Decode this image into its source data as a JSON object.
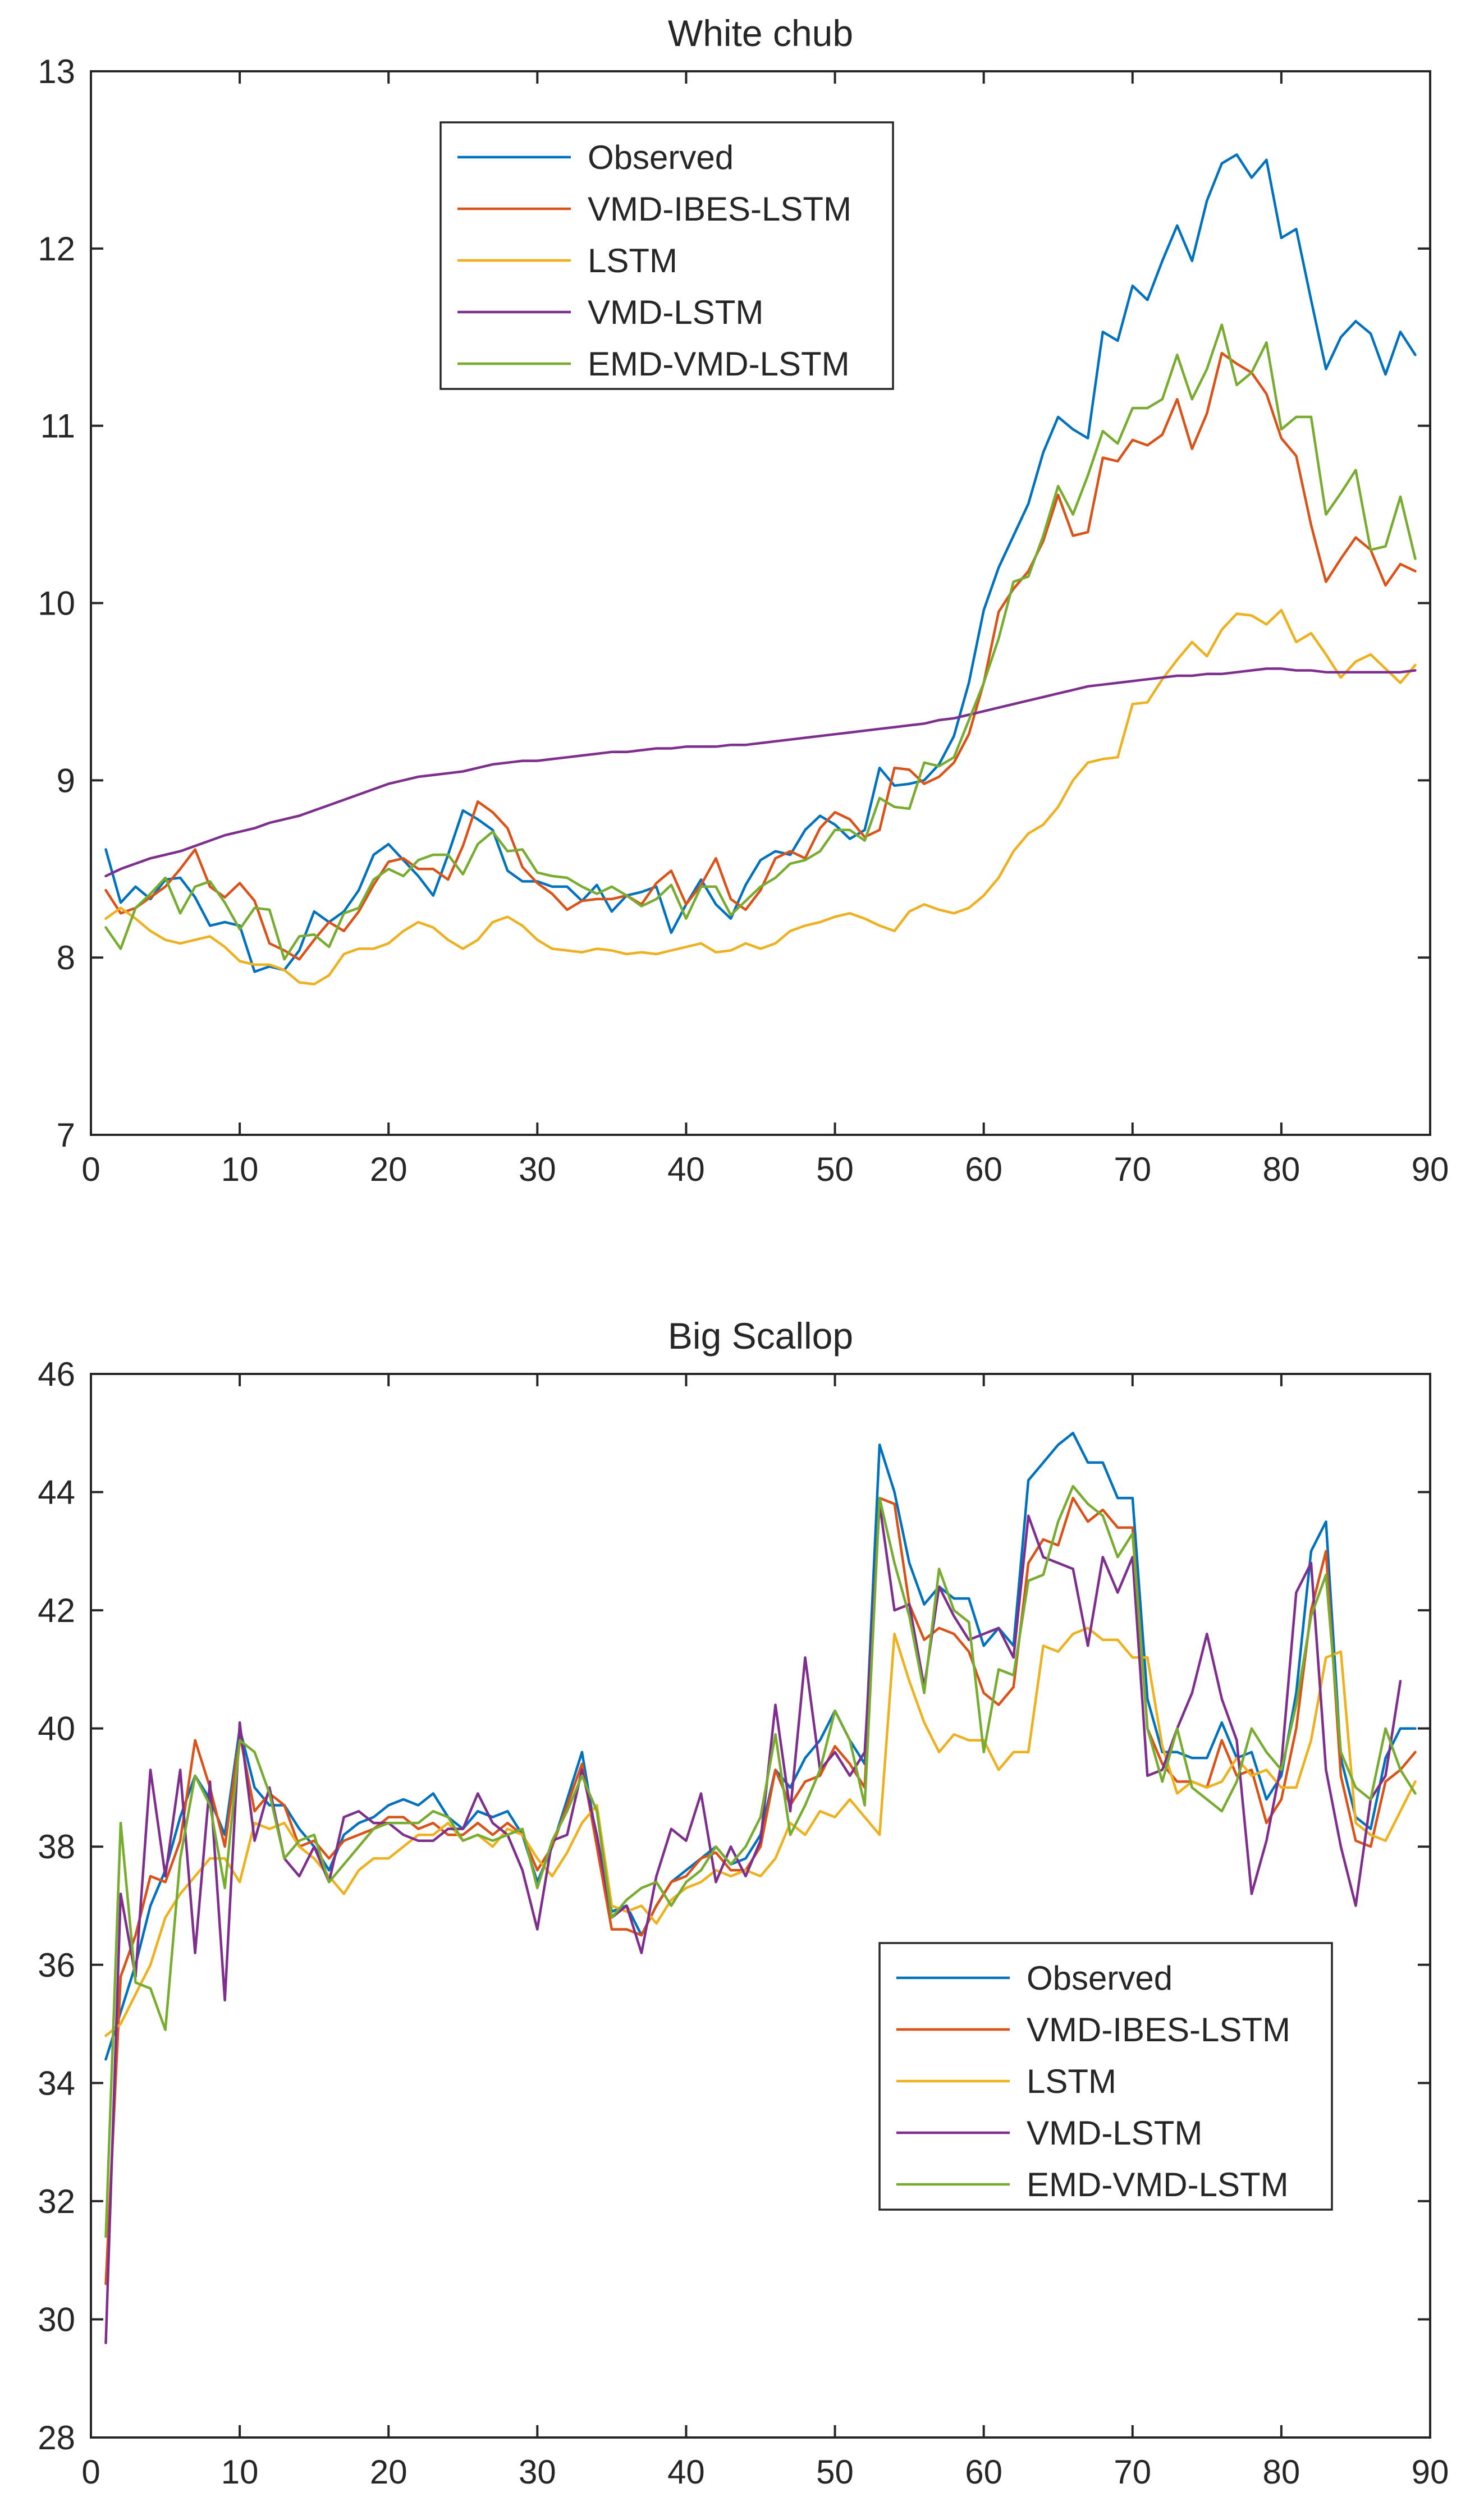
{
  "chart_data": [
    {
      "type": "line",
      "title": "White chub",
      "xlabel": "",
      "ylabel": "",
      "xlim": [
        0,
        90
      ],
      "ylim": [
        7,
        13
      ],
      "xticks": [
        0,
        10,
        20,
        30,
        40,
        50,
        60,
        70,
        80,
        90
      ],
      "yticks": [
        7,
        8,
        9,
        10,
        11,
        12,
        13
      ],
      "legend_position": "top-center",
      "series": [
        {
          "name": "Observed",
          "color": "#0072BD",
          "x_start": 1,
          "values": [
            8.61,
            8.31,
            8.4,
            8.33,
            8.44,
            8.45,
            8.34,
            8.18,
            8.2,
            8.18,
            7.92,
            7.95,
            7.93,
            8.04,
            8.26,
            8.2,
            8.26,
            8.38,
            8.58,
            8.64,
            8.55,
            8.46,
            8.35,
            8.58,
            8.83,
            8.78,
            8.72,
            8.49,
            8.43,
            8.43,
            8.4,
            8.4,
            8.32,
            8.41,
            8.26,
            8.35,
            8.37,
            8.4,
            8.14,
            8.3,
            8.44,
            8.3,
            8.22,
            8.41,
            8.55,
            8.6,
            8.58,
            8.72,
            8.8,
            8.75,
            8.67,
            8.72,
            9.07,
            8.97,
            8.98,
            9.0,
            9.09,
            9.25,
            9.55,
            9.96,
            10.2,
            10.38,
            10.56,
            10.85,
            11.05,
            10.98,
            10.93,
            11.53,
            11.48,
            11.79,
            11.71,
            11.93,
            12.13,
            11.93,
            12.27,
            12.48,
            12.53,
            12.4,
            12.5,
            12.06,
            12.11,
            11.71,
            11.32,
            11.5,
            11.59,
            11.52,
            11.29,
            11.53,
            11.4
          ]
        },
        {
          "name": "VMD-IBES-LSTM",
          "color": "#D95319",
          "x_start": 1,
          "values": [
            8.38,
            8.25,
            8.28,
            8.34,
            8.4,
            8.5,
            8.61,
            8.4,
            8.34,
            8.42,
            8.32,
            8.08,
            8.04,
            7.99,
            8.1,
            8.2,
            8.15,
            8.26,
            8.41,
            8.54,
            8.56,
            8.5,
            8.5,
            8.44,
            8.63,
            8.88,
            8.82,
            8.73,
            8.51,
            8.42,
            8.36,
            8.27,
            8.32,
            8.33,
            8.33,
            8.35,
            8.3,
            8.42,
            8.49,
            8.3,
            8.41,
            8.56,
            8.33,
            8.27,
            8.38,
            8.56,
            8.6,
            8.56,
            8.73,
            8.82,
            8.78,
            8.68,
            8.72,
            9.07,
            9.06,
            8.98,
            9.02,
            9.1,
            9.26,
            9.55,
            9.95,
            10.08,
            10.18,
            10.35,
            10.61,
            10.38,
            10.4,
            10.82,
            10.8,
            10.92,
            10.89,
            10.95,
            11.15,
            10.87,
            11.07,
            11.41,
            11.35,
            11.3,
            11.18,
            10.93,
            10.83,
            10.44,
            10.12,
            10.25,
            10.37,
            10.3,
            10.1,
            10.22,
            10.18
          ]
        },
        {
          "name": "LSTM",
          "color": "#EDB120",
          "x_start": 1,
          "values": [
            8.22,
            8.28,
            8.22,
            8.15,
            8.1,
            8.08,
            8.1,
            8.12,
            8.06,
            7.98,
            7.96,
            7.96,
            7.93,
            7.86,
            7.85,
            7.9,
            8.02,
            8.05,
            8.05,
            8.08,
            8.15,
            8.2,
            8.17,
            8.1,
            8.05,
            8.1,
            8.2,
            8.23,
            8.18,
            8.1,
            8.05,
            8.04,
            8.03,
            8.05,
            8.04,
            8.02,
            8.03,
            8.02,
            8.04,
            8.06,
            8.08,
            8.03,
            8.04,
            8.08,
            8.05,
            8.08,
            8.15,
            8.18,
            8.2,
            8.23,
            8.25,
            8.22,
            8.18,
            8.15,
            8.26,
            8.3,
            8.27,
            8.25,
            8.28,
            8.35,
            8.45,
            8.6,
            8.7,
            8.75,
            8.85,
            9.0,
            9.1,
            9.12,
            9.13,
            9.43,
            9.44,
            9.57,
            9.68,
            9.78,
            9.7,
            9.85,
            9.94,
            9.93,
            9.88,
            9.96,
            9.78,
            9.83,
            9.71,
            9.58,
            9.67,
            9.71,
            9.63,
            9.55,
            9.65
          ]
        },
        {
          "name": "VMD-LSTM",
          "color": "#7E2F8E",
          "x_start": 1,
          "values": [
            8.46,
            8.5,
            8.53,
            8.56,
            8.58,
            8.6,
            8.63,
            8.66,
            8.69,
            8.71,
            8.73,
            8.76,
            8.78,
            8.8,
            8.83,
            8.86,
            8.89,
            8.92,
            8.95,
            8.98,
            9.0,
            9.02,
            9.03,
            9.04,
            9.05,
            9.07,
            9.09,
            9.1,
            9.11,
            9.11,
            9.12,
            9.13,
            9.14,
            9.15,
            9.16,
            9.16,
            9.17,
            9.18,
            9.18,
            9.19,
            9.19,
            9.19,
            9.2,
            9.2,
            9.21,
            9.22,
            9.23,
            9.24,
            9.25,
            9.26,
            9.27,
            9.28,
            9.29,
            9.3,
            9.31,
            9.32,
            9.34,
            9.35,
            9.37,
            9.39,
            9.41,
            9.43,
            9.45,
            9.47,
            9.49,
            9.51,
            9.53,
            9.54,
            9.55,
            9.56,
            9.57,
            9.58,
            9.59,
            9.59,
            9.6,
            9.6,
            9.61,
            9.62,
            9.63,
            9.63,
            9.62,
            9.62,
            9.61,
            9.61,
            9.61,
            9.61,
            9.61,
            9.61,
            9.62
          ]
        },
        {
          "name": "EMD-VMD-LSTM",
          "color": "#77AC30",
          "x_start": 1,
          "values": [
            8.17,
            8.05,
            8.28,
            8.36,
            8.45,
            8.25,
            8.4,
            8.43,
            8.31,
            8.16,
            8.28,
            8.27,
            7.99,
            8.12,
            8.13,
            8.06,
            8.25,
            8.28,
            8.44,
            8.5,
            8.46,
            8.55,
            8.58,
            8.58,
            8.47,
            8.64,
            8.71,
            8.6,
            8.61,
            8.48,
            8.46,
            8.45,
            8.4,
            8.36,
            8.4,
            8.35,
            8.29,
            8.33,
            8.41,
            8.22,
            8.4,
            8.4,
            8.24,
            8.32,
            8.4,
            8.45,
            8.53,
            8.55,
            8.6,
            8.72,
            8.72,
            8.66,
            8.9,
            8.85,
            8.84,
            9.1,
            9.08,
            9.13,
            9.34,
            9.55,
            9.8,
            10.12,
            10.15,
            10.38,
            10.66,
            10.5,
            10.72,
            10.97,
            10.9,
            11.1,
            11.1,
            11.15,
            11.4,
            11.15,
            11.32,
            11.57,
            11.23,
            11.3,
            11.47,
            10.98,
            11.05,
            11.05,
            10.5,
            10.62,
            10.75,
            10.3,
            10.32,
            10.6,
            10.25
          ]
        }
      ]
    },
    {
      "type": "line",
      "title": "Big Scallop",
      "xlabel": "",
      "ylabel": "",
      "xlim": [
        0,
        90
      ],
      "ylim": [
        28,
        46
      ],
      "xticks": [
        0,
        10,
        20,
        30,
        40,
        50,
        60,
        70,
        80,
        90
      ],
      "yticks": [
        28,
        30,
        32,
        34,
        36,
        38,
        40,
        42,
        44,
        46
      ],
      "legend_position": "bottom-right",
      "series": [
        {
          "name": "Observed",
          "color": "#0072BD",
          "x_start": 1,
          "values": [
            34.4,
            35.2,
            36.0,
            37.0,
            37.6,
            38.5,
            39.2,
            38.8,
            38.2,
            40.0,
            39.0,
            38.7,
            38.7,
            38.3,
            38.0,
            37.6,
            38.2,
            38.4,
            38.5,
            38.7,
            38.8,
            38.7,
            38.9,
            38.5,
            38.3,
            38.6,
            38.5,
            38.6,
            38.2,
            37.4,
            38.0,
            38.8,
            39.6,
            38.1,
            36.9,
            37.0,
            36.5,
            37.0,
            37.4,
            37.6,
            37.8,
            38.0,
            37.7,
            37.8,
            38.2,
            39.3,
            39.0,
            39.5,
            39.8,
            40.3,
            39.8,
            39.4,
            44.8,
            44.0,
            42.8,
            42.1,
            42.4,
            42.2,
            42.2,
            41.4,
            41.7,
            41.4,
            44.2,
            44.5,
            44.8,
            45.0,
            44.5,
            44.5,
            43.9,
            43.9,
            40.5,
            39.6,
            39.6,
            39.5,
            39.5,
            40.1,
            39.5,
            39.6,
            38.8,
            39.2,
            40.6,
            43.0,
            43.5,
            39.5,
            38.5,
            38.3,
            39.5,
            40.0,
            40.0
          ]
        },
        {
          "name": "VMD-IBES-LSTM",
          "color": "#D95319",
          "x_start": 1,
          "values": [
            30.6,
            35.8,
            36.5,
            37.5,
            37.4,
            38.1,
            39.8,
            39.0,
            38.0,
            39.9,
            38.6,
            38.9,
            38.7,
            38.0,
            38.1,
            37.8,
            38.1,
            38.2,
            38.3,
            38.5,
            38.5,
            38.3,
            38.4,
            38.2,
            38.2,
            38.4,
            38.2,
            38.4,
            38.2,
            37.6,
            38.0,
            38.7,
            39.4,
            38.0,
            36.6,
            36.6,
            36.5,
            37.0,
            37.4,
            37.5,
            37.8,
            37.9,
            37.6,
            37.6,
            38.0,
            39.3,
            38.7,
            39.1,
            39.2,
            39.7,
            39.4,
            39.0,
            43.9,
            43.8,
            42.1,
            41.5,
            41.7,
            41.6,
            41.3,
            40.6,
            40.4,
            40.7,
            42.8,
            43.2,
            43.1,
            43.9,
            43.5,
            43.7,
            43.4,
            43.4,
            40.0,
            39.4,
            39.1,
            39.1,
            39.0,
            39.8,
            39.2,
            39.3,
            38.4,
            38.8,
            40.0,
            42.0,
            43.0,
            39.2,
            38.1,
            38.0,
            39.1,
            39.3,
            39.6
          ]
        },
        {
          "name": "LSTM",
          "color": "#EDB120",
          "x_start": 1,
          "values": [
            34.8,
            35.0,
            35.5,
            36.0,
            36.8,
            37.2,
            37.5,
            37.8,
            37.8,
            37.4,
            38.4,
            38.3,
            38.4,
            38.0,
            37.8,
            37.5,
            37.2,
            37.6,
            37.8,
            37.8,
            38.0,
            38.2,
            38.2,
            38.4,
            38.1,
            38.2,
            38.0,
            38.3,
            38.2,
            37.8,
            37.5,
            37.9,
            38.4,
            38.7,
            37.0,
            36.9,
            37.0,
            36.7,
            37.1,
            37.3,
            37.4,
            37.6,
            37.5,
            37.6,
            37.5,
            37.8,
            38.4,
            38.2,
            38.6,
            38.5,
            38.8,
            38.5,
            38.2,
            41.6,
            40.8,
            40.1,
            39.6,
            39.9,
            39.8,
            39.8,
            39.3,
            39.6,
            39.6,
            41.4,
            41.3,
            41.6,
            41.7,
            41.5,
            41.5,
            41.2,
            41.2,
            39.7,
            38.9,
            39.1,
            39.0,
            39.1,
            39.5,
            39.2,
            39.3,
            39.0,
            39.0,
            39.8,
            41.2,
            41.3,
            38.4,
            38.2,
            38.1,
            38.6,
            39.1
          ]
        },
        {
          "name": "VMD-LSTM",
          "color": "#7E2F8E",
          "x_start": 1,
          "values": [
            29.6,
            37.2,
            35.8,
            39.3,
            37.5,
            39.3,
            36.2,
            39.1,
            35.4,
            40.1,
            38.1,
            39.0,
            37.8,
            37.5,
            38.0,
            37.4,
            38.5,
            38.6,
            38.4,
            38.4,
            38.2,
            38.1,
            38.1,
            38.3,
            38.3,
            38.9,
            38.4,
            38.2,
            37.6,
            36.6,
            38.1,
            38.2,
            39.3,
            38.2,
            36.8,
            37.0,
            36.2,
            37.5,
            38.3,
            38.1,
            38.9,
            37.4,
            38.0,
            37.5,
            38.1,
            40.4,
            38.6,
            41.2,
            39.3,
            39.6,
            39.2,
            39.6,
            43.8,
            42.0,
            42.1,
            40.7,
            42.4,
            41.9,
            41.5,
            41.6,
            41.7,
            41.2,
            43.6,
            42.9,
            42.8,
            42.7,
            41.4,
            42.9,
            42.3,
            42.9,
            39.2,
            39.3,
            40.0,
            40.6,
            41.6,
            40.5,
            39.8,
            37.2,
            38.1,
            39.4,
            42.3,
            42.8,
            39.3,
            38.0,
            37.0,
            38.8,
            39.2,
            40.8
          ]
        },
        {
          "name": "EMD-VMD-LSTM",
          "color": "#77AC30",
          "x_start": 1,
          "values": [
            31.4,
            38.4,
            35.7,
            35.6,
            34.9,
            37.8,
            39.2,
            38.7,
            37.3,
            39.8,
            39.6,
            38.9,
            37.8,
            38.1,
            38.2,
            37.4,
            37.7,
            38.0,
            38.3,
            38.4,
            38.4,
            38.4,
            38.6,
            38.5,
            38.1,
            38.2,
            38.1,
            38.2,
            38.3,
            37.3,
            38.1,
            38.6,
            39.2,
            38.6,
            36.8,
            37.1,
            37.3,
            37.4,
            37.0,
            37.4,
            37.6,
            38.0,
            37.7,
            38.0,
            38.5,
            39.9,
            38.2,
            38.7,
            39.3,
            40.3,
            39.8,
            38.7,
            43.9,
            42.8,
            41.9,
            40.6,
            42.7,
            42.0,
            41.8,
            39.6,
            41.0,
            40.9,
            42.5,
            42.6,
            43.5,
            44.1,
            43.8,
            43.6,
            42.9,
            43.3,
            40.0,
            39.1,
            40.0,
            39.0,
            38.8,
            38.6,
            39.1,
            40.0,
            39.6,
            39.3,
            40.4,
            41.9,
            42.6,
            39.6,
            39.0,
            38.8,
            40.0,
            39.3,
            38.9
          ]
        }
      ]
    }
  ]
}
